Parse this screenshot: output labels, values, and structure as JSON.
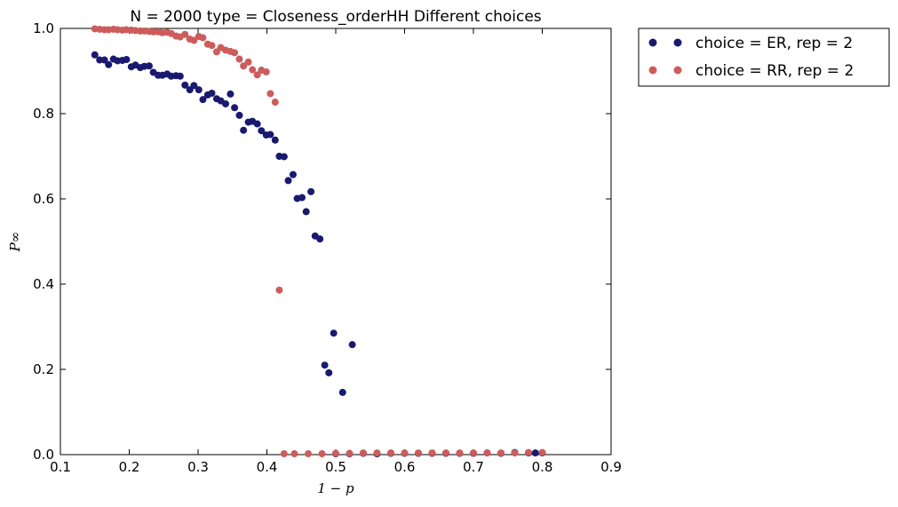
{
  "chart_data": {
    "type": "scatter",
    "title": "N = 2000 type = Closeness_orderHH Different choices",
    "xlabel": "1 − p",
    "ylabel": "P∞",
    "xlim": [
      0.1,
      0.9
    ],
    "ylim": [
      0.0,
      1.0
    ],
    "xticks": [
      "0.1",
      "0.2",
      "0.3",
      "0.4",
      "0.5",
      "0.6",
      "0.7",
      "0.8",
      "0.9"
    ],
    "yticks": [
      "0.0",
      "0.2",
      "0.4",
      "0.6",
      "0.8",
      "1.0"
    ],
    "grid": false,
    "legend_position": "outside-top-right",
    "series": [
      {
        "name": "choice = ER, rep = 2",
        "color": "#191970",
        "points": [
          [
            0.15,
            0.938
          ],
          [
            0.157,
            0.926
          ],
          [
            0.164,
            0.926
          ],
          [
            0.17,
            0.915
          ],
          [
            0.177,
            0.928
          ],
          [
            0.183,
            0.924
          ],
          [
            0.19,
            0.925
          ],
          [
            0.196,
            0.927
          ],
          [
            0.203,
            0.91
          ],
          [
            0.209,
            0.914
          ],
          [
            0.216,
            0.908
          ],
          [
            0.222,
            0.911
          ],
          [
            0.229,
            0.912
          ],
          [
            0.235,
            0.897
          ],
          [
            0.242,
            0.89
          ],
          [
            0.248,
            0.89
          ],
          [
            0.255,
            0.893
          ],
          [
            0.261,
            0.888
          ],
          [
            0.268,
            0.889
          ],
          [
            0.274,
            0.888
          ],
          [
            0.281,
            0.867
          ],
          [
            0.288,
            0.856
          ],
          [
            0.294,
            0.866
          ],
          [
            0.301,
            0.856
          ],
          [
            0.307,
            0.833
          ],
          [
            0.314,
            0.844
          ],
          [
            0.32,
            0.848
          ],
          [
            0.327,
            0.835
          ],
          [
            0.333,
            0.83
          ],
          [
            0.34,
            0.823
          ],
          [
            0.347,
            0.846
          ],
          [
            0.353,
            0.814
          ],
          [
            0.36,
            0.796
          ],
          [
            0.366,
            0.761
          ],
          [
            0.373,
            0.78
          ],
          [
            0.379,
            0.782
          ],
          [
            0.386,
            0.776
          ],
          [
            0.392,
            0.76
          ],
          [
            0.399,
            0.75
          ],
          [
            0.405,
            0.751
          ],
          [
            0.412,
            0.738
          ],
          [
            0.418,
            0.7
          ],
          [
            0.425,
            0.699
          ],
          [
            0.431,
            0.643
          ],
          [
            0.438,
            0.657
          ],
          [
            0.444,
            0.601
          ],
          [
            0.451,
            0.603
          ],
          [
            0.457,
            0.57
          ],
          [
            0.464,
            0.617
          ],
          [
            0.47,
            0.513
          ],
          [
            0.477,
            0.506
          ],
          [
            0.484,
            0.21
          ],
          [
            0.49,
            0.192
          ],
          [
            0.497,
            0.285
          ],
          [
            0.51,
            0.146
          ],
          [
            0.524,
            0.258
          ],
          [
            0.5,
            0.002
          ],
          [
            0.52,
            0.002
          ],
          [
            0.54,
            0.003
          ],
          [
            0.56,
            0.002
          ],
          [
            0.58,
            0.003
          ],
          [
            0.6,
            0.003
          ],
          [
            0.62,
            0.003
          ],
          [
            0.64,
            0.003
          ],
          [
            0.66,
            0.003
          ],
          [
            0.68,
            0.003
          ],
          [
            0.7,
            0.003
          ],
          [
            0.72,
            0.004
          ],
          [
            0.74,
            0.003
          ],
          [
            0.76,
            0.005
          ],
          [
            0.78,
            0.004
          ],
          [
            0.79,
            0.004
          ],
          [
            0.8,
            0.004
          ]
        ]
      },
      {
        "name": "choice = RR, rep = 2",
        "color": "#cd5c5c",
        "points": [
          [
            0.15,
            0.999
          ],
          [
            0.157,
            0.998
          ],
          [
            0.164,
            0.997
          ],
          [
            0.17,
            0.997
          ],
          [
            0.177,
            0.998
          ],
          [
            0.183,
            0.997
          ],
          [
            0.19,
            0.996
          ],
          [
            0.196,
            0.997
          ],
          [
            0.203,
            0.996
          ],
          [
            0.209,
            0.995
          ],
          [
            0.216,
            0.994
          ],
          [
            0.222,
            0.994
          ],
          [
            0.229,
            0.993
          ],
          [
            0.235,
            0.992
          ],
          [
            0.242,
            0.992
          ],
          [
            0.248,
            0.99
          ],
          [
            0.255,
            0.991
          ],
          [
            0.261,
            0.988
          ],
          [
            0.268,
            0.982
          ],
          [
            0.274,
            0.98
          ],
          [
            0.281,
            0.986
          ],
          [
            0.288,
            0.975
          ],
          [
            0.294,
            0.972
          ],
          [
            0.301,
            0.981
          ],
          [
            0.307,
            0.978
          ],
          [
            0.314,
            0.963
          ],
          [
            0.32,
            0.96
          ],
          [
            0.327,
            0.945
          ],
          [
            0.333,
            0.955
          ],
          [
            0.34,
            0.949
          ],
          [
            0.347,
            0.946
          ],
          [
            0.353,
            0.943
          ],
          [
            0.36,
            0.928
          ],
          [
            0.366,
            0.912
          ],
          [
            0.373,
            0.921
          ],
          [
            0.379,
            0.903
          ],
          [
            0.386,
            0.891
          ],
          [
            0.392,
            0.902
          ],
          [
            0.399,
            0.898
          ],
          [
            0.405,
            0.847
          ],
          [
            0.412,
            0.827
          ],
          [
            0.418,
            0.386
          ],
          [
            0.425,
            0.002
          ],
          [
            0.44,
            0.002
          ],
          [
            0.46,
            0.002
          ],
          [
            0.48,
            0.002
          ],
          [
            0.5,
            0.003
          ],
          [
            0.52,
            0.003
          ],
          [
            0.54,
            0.004
          ],
          [
            0.56,
            0.004
          ],
          [
            0.58,
            0.004
          ],
          [
            0.6,
            0.004
          ],
          [
            0.62,
            0.004
          ],
          [
            0.64,
            0.004
          ],
          [
            0.66,
            0.004
          ],
          [
            0.68,
            0.004
          ],
          [
            0.7,
            0.004
          ],
          [
            0.72,
            0.004
          ],
          [
            0.74,
            0.004
          ],
          [
            0.76,
            0.004
          ],
          [
            0.78,
            0.005
          ],
          [
            0.8,
            0.005
          ]
        ]
      }
    ]
  }
}
